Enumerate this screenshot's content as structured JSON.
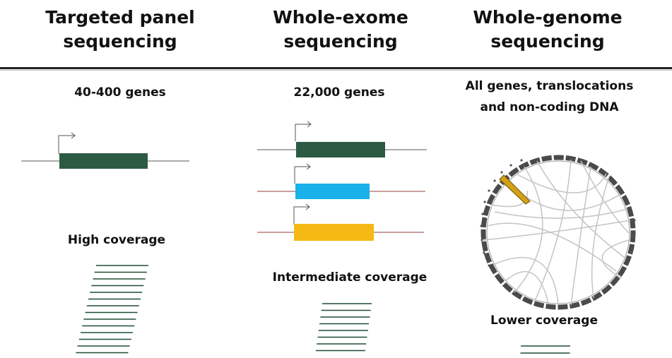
{
  "columns": [
    {
      "title": "Targeted panel\nsequencing",
      "scope": "40-400 genes",
      "coverage_label": "High coverage",
      "gene_colors": [
        "#2d5a43"
      ],
      "read_line_count": 14
    },
    {
      "title": "Whole-exome\nsequencing",
      "scope": "22,000 genes",
      "coverage_label": "Intermediate coverage",
      "gene_colors": [
        "#2d5a43",
        "#1ab0e8",
        "#f5b915"
      ],
      "read_line_count": 8
    },
    {
      "title": "Whole-genome\nsequencing",
      "scope": "All genes, translocations\nand non-coding DNA",
      "coverage_label": "Lower coverage",
      "gene_colors": [],
      "read_line_count": 2
    }
  ],
  "colors": {
    "read_line": "#1f4d33",
    "text": "#111111",
    "circos_ring": "#4a4a4a",
    "circos_highlight": "#d4a017"
  }
}
